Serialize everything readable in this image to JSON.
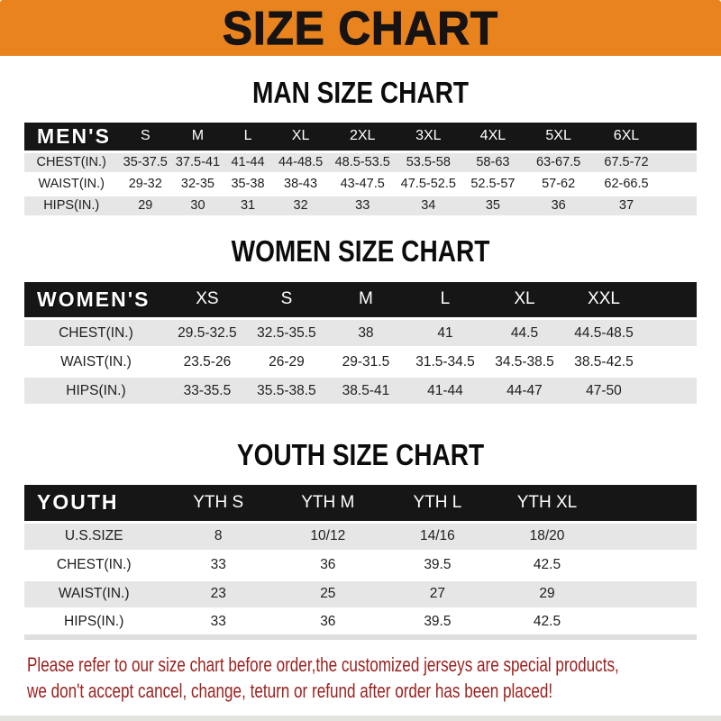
{
  "banner": {
    "title": "SIZE CHART"
  },
  "colors": {
    "banner_bg": "#E8831E",
    "header_black": "#161616",
    "row_gray": "#E6E6E6",
    "note_red": "#9A2220"
  },
  "sections": [
    {
      "id": "men",
      "heading": "MAN SIZE CHART",
      "header_label": "MEN'S",
      "columns": [
        "S",
        "M",
        "L",
        "XL",
        "2XL",
        "3XL",
        "4XL",
        "5XL",
        "6XL"
      ],
      "rows": [
        {
          "label": "CHEST(IN.)",
          "values": [
            "35-37.5",
            "37.5-41",
            "41-44",
            "44-48.5",
            "48.5-53.5",
            "53.5-58",
            "58-63",
            "63-67.5",
            "67.5-72"
          ]
        },
        {
          "label": "WAIST(IN.)",
          "values": [
            "29-32",
            "32-35",
            "35-38",
            "38-43",
            "43-47.5",
            "47.5-52.5",
            "52.5-57",
            "57-62",
            "62-66.5"
          ]
        },
        {
          "label": "HIPS(IN.)",
          "values": [
            "29",
            "30",
            "31",
            "32",
            "33",
            "34",
            "35",
            "36",
            "37"
          ]
        }
      ]
    },
    {
      "id": "women",
      "heading": "WOMEN SIZE CHART",
      "header_label": "WOMEN'S",
      "columns": [
        "XS",
        "S",
        "M",
        "L",
        "XL",
        "XXL"
      ],
      "rows": [
        {
          "label": "CHEST(IN.)",
          "values": [
            "29.5-32.5",
            "32.5-35.5",
            "38",
            "41",
            "44.5",
            "44.5-48.5"
          ]
        },
        {
          "label": "WAIST(IN.)",
          "values": [
            "23.5-26",
            "26-29",
            "29-31.5",
            "31.5-34.5",
            "34.5-38.5",
            "38.5-42.5"
          ]
        },
        {
          "label": "HIPS(IN.)",
          "values": [
            "33-35.5",
            "35.5-38.5",
            "38.5-41",
            "41-44",
            "44-47",
            "47-50"
          ]
        }
      ]
    },
    {
      "id": "youth",
      "heading": "YOUTH SIZE CHART",
      "header_label": "YOUTH",
      "columns": [
        "YTH S",
        "YTH M",
        "YTH L",
        "YTH XL"
      ],
      "rows": [
        {
          "label": "U.S.SIZE",
          "values": [
            "8",
            "10/12",
            "14/16",
            "18/20"
          ]
        },
        {
          "label": "CHEST(IN.)",
          "values": [
            "33",
            "36",
            "39.5",
            "42.5"
          ]
        },
        {
          "label": "WAIST(IN.)",
          "values": [
            "23",
            "25",
            "27",
            "29"
          ]
        },
        {
          "label": "HIPS(IN.)",
          "values": [
            "33",
            "36",
            "39.5",
            "42.5"
          ]
        }
      ]
    }
  ],
  "footer": {
    "lines": [
      "Please refer to our size chart before order,the customized jerseys are special products,",
      "we don't accept cancel, change, teturn or refund after order has been placed!"
    ]
  }
}
